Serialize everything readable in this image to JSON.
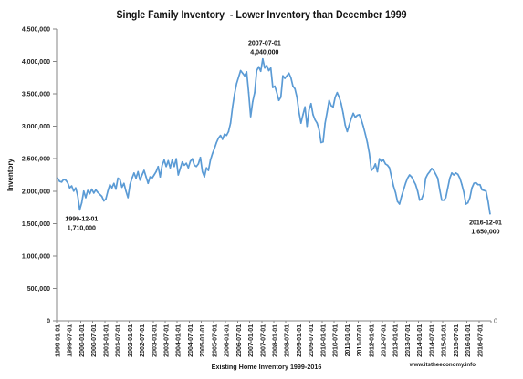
{
  "chart_data": {
    "type": "line",
    "title": "Single Family Inventory  - Lower Inventory than December 1999",
    "xlabel": "Existing Home Inventory 1999-2016",
    "ylabel": "Inventory",
    "ylim": [
      0,
      4500000
    ],
    "y_ticks": [
      0,
      500000,
      1000000,
      1500000,
      2000000,
      2500000,
      3000000,
      3500000,
      4000000,
      4500000
    ],
    "y_tick_labels": [
      "0",
      "500,000",
      "1,000,000",
      "1,500,000",
      "2,000,000",
      "2,500,000",
      "3,000,000",
      "3,500,000",
      "4,000,000",
      "4,500,000"
    ],
    "secondary_y_tick_labels": [
      "0"
    ],
    "grid": false,
    "line_color": "#5b9bd5",
    "x_tick_labels": [
      "1999-01-01",
      "1999-07-01",
      "2000-01-01",
      "2000-07-01",
      "2001-01-01",
      "2001-07-01",
      "2002-01-01",
      "2002-07-01",
      "2003-01-01",
      "2003-07-01",
      "2004-01-01",
      "2004-07-01",
      "2005-01-01",
      "2005-07-01",
      "2006-01-01",
      "2006-07-01",
      "2007-01-01",
      "2007-07-01",
      "2008-01-01",
      "2008-07-01",
      "2009-01-01",
      "2009-07-01",
      "2010-01-01",
      "2010-07-01",
      "2011-01-01",
      "2011-07-01",
      "2012-01-01",
      "2012-07-01",
      "2013-01-01",
      "2013-07-01",
      "2014-01-01",
      "2014-07-01",
      "2015-01-01",
      "2015-07-01",
      "2016-01-01",
      "2016-07-01"
    ],
    "x": [
      "1999-01-01",
      "1999-02-01",
      "1999-03-01",
      "1999-04-01",
      "1999-05-01",
      "1999-06-01",
      "1999-07-01",
      "1999-08-01",
      "1999-09-01",
      "1999-10-01",
      "1999-11-01",
      "1999-12-01",
      "2000-01-01",
      "2000-02-01",
      "2000-03-01",
      "2000-04-01",
      "2000-05-01",
      "2000-06-01",
      "2000-07-01",
      "2000-08-01",
      "2000-09-01",
      "2000-10-01",
      "2000-11-01",
      "2000-12-01",
      "2001-01-01",
      "2001-02-01",
      "2001-03-01",
      "2001-04-01",
      "2001-05-01",
      "2001-06-01",
      "2001-07-01",
      "2001-08-01",
      "2001-09-01",
      "2001-10-01",
      "2001-11-01",
      "2001-12-01",
      "2002-01-01",
      "2002-02-01",
      "2002-03-01",
      "2002-04-01",
      "2002-05-01",
      "2002-06-01",
      "2002-07-01",
      "2002-08-01",
      "2002-09-01",
      "2002-10-01",
      "2002-11-01",
      "2002-12-01",
      "2003-01-01",
      "2003-02-01",
      "2003-03-01",
      "2003-04-01",
      "2003-05-01",
      "2003-06-01",
      "2003-07-01",
      "2003-08-01",
      "2003-09-01",
      "2003-10-01",
      "2003-11-01",
      "2003-12-01",
      "2004-01-01",
      "2004-02-01",
      "2004-03-01",
      "2004-04-01",
      "2004-05-01",
      "2004-06-01",
      "2004-07-01",
      "2004-08-01",
      "2004-09-01",
      "2004-10-01",
      "2004-11-01",
      "2004-12-01",
      "2005-01-01",
      "2005-02-01",
      "2005-03-01",
      "2005-04-01",
      "2005-05-01",
      "2005-06-01",
      "2005-07-01",
      "2005-08-01",
      "2005-09-01",
      "2005-10-01",
      "2005-11-01",
      "2005-12-01",
      "2006-01-01",
      "2006-02-01",
      "2006-03-01",
      "2006-04-01",
      "2006-05-01",
      "2006-06-01",
      "2006-07-01",
      "2006-08-01",
      "2006-09-01",
      "2006-10-01",
      "2006-11-01",
      "2006-12-01",
      "2007-01-01",
      "2007-02-01",
      "2007-03-01",
      "2007-04-01",
      "2007-05-01",
      "2007-06-01",
      "2007-07-01",
      "2007-08-01",
      "2007-09-01",
      "2007-10-01",
      "2007-11-01",
      "2007-12-01",
      "2008-01-01",
      "2008-02-01",
      "2008-03-01",
      "2008-04-01",
      "2008-05-01",
      "2008-06-01",
      "2008-07-01",
      "2008-08-01",
      "2008-09-01",
      "2008-10-01",
      "2008-11-01",
      "2008-12-01",
      "2009-01-01",
      "2009-02-01",
      "2009-03-01",
      "2009-04-01",
      "2009-05-01",
      "2009-06-01",
      "2009-07-01",
      "2009-08-01",
      "2009-09-01",
      "2009-10-01",
      "2009-11-01",
      "2009-12-01",
      "2010-01-01",
      "2010-02-01",
      "2010-03-01",
      "2010-04-01",
      "2010-05-01",
      "2010-06-01",
      "2010-07-01",
      "2010-08-01",
      "2010-09-01",
      "2010-10-01",
      "2010-11-01",
      "2010-12-01",
      "2011-01-01",
      "2011-02-01",
      "2011-03-01",
      "2011-04-01",
      "2011-05-01",
      "2011-06-01",
      "2011-07-01",
      "2011-08-01",
      "2011-09-01",
      "2011-10-01",
      "2011-11-01",
      "2011-12-01",
      "2012-01-01",
      "2012-02-01",
      "2012-03-01",
      "2012-04-01",
      "2012-05-01",
      "2012-06-01",
      "2012-07-01",
      "2012-08-01",
      "2012-09-01",
      "2012-10-01",
      "2012-11-01",
      "2012-12-01",
      "2013-01-01",
      "2013-02-01",
      "2013-03-01",
      "2013-04-01",
      "2013-05-01",
      "2013-06-01",
      "2013-07-01",
      "2013-08-01",
      "2013-09-01",
      "2013-10-01",
      "2013-11-01",
      "2013-12-01",
      "2014-01-01",
      "2014-02-01",
      "2014-03-01",
      "2014-04-01",
      "2014-05-01",
      "2014-06-01",
      "2014-07-01",
      "2014-08-01",
      "2014-09-01",
      "2014-10-01",
      "2014-11-01",
      "2014-12-01",
      "2015-01-01",
      "2015-02-01",
      "2015-03-01",
      "2015-04-01",
      "2015-05-01",
      "2015-06-01",
      "2015-07-01",
      "2015-08-01",
      "2015-09-01",
      "2015-10-01",
      "2015-11-01",
      "2015-12-01",
      "2016-01-01",
      "2016-02-01",
      "2016-03-01",
      "2016-04-01",
      "2016-05-01",
      "2016-06-01",
      "2016-07-01",
      "2016-08-01",
      "2016-09-01",
      "2016-10-01",
      "2016-11-01",
      "2016-12-01"
    ],
    "series": [
      {
        "values": [
          2200000,
          2150000,
          2140000,
          2180000,
          2170000,
          2130000,
          2050000,
          2080000,
          2000000,
          2050000,
          1930000,
          1710000,
          1820000,
          2000000,
          1900000,
          2010000,
          1960000,
          2030000,
          1970000,
          2020000,
          1980000,
          1950000,
          1920000,
          1850000,
          1880000,
          2000000,
          2100000,
          2050000,
          2120000,
          2030000,
          2200000,
          2180000,
          2060000,
          2120000,
          2000000,
          1900000,
          2100000,
          2200000,
          2280000,
          2200000,
          2300000,
          2170000,
          2250000,
          2320000,
          2220000,
          2120000,
          2220000,
          2200000,
          2250000,
          2300000,
          2380000,
          2220000,
          2400000,
          2480000,
          2380000,
          2470000,
          2360000,
          2480000,
          2380000,
          2500000,
          2250000,
          2350000,
          2450000,
          2400000,
          2430000,
          2360000,
          2460000,
          2500000,
          2400000,
          2380000,
          2420000,
          2520000,
          2300000,
          2220000,
          2360000,
          2320000,
          2480000,
          2580000,
          2660000,
          2750000,
          2820000,
          2860000,
          2800000,
          2880000,
          2860000,
          2920000,
          3050000,
          3300000,
          3500000,
          3660000,
          3760000,
          3860000,
          3820000,
          3780000,
          3840000,
          3520000,
          3150000,
          3380000,
          3520000,
          3860000,
          3920000,
          3850000,
          4040000,
          3900000,
          3940000,
          3860000,
          3900000,
          3600000,
          3620000,
          3520000,
          3400000,
          3450000,
          3780000,
          3740000,
          3780000,
          3820000,
          3750000,
          3620000,
          3580000,
          3450000,
          3220000,
          3050000,
          3180000,
          3300000,
          3000000,
          3250000,
          3350000,
          3180000,
          3100000,
          3050000,
          2950000,
          2750000,
          2760000,
          3050000,
          3220000,
          3400000,
          3320000,
          3300000,
          3450000,
          3520000,
          3450000,
          3350000,
          3200000,
          3020000,
          2920000,
          3020000,
          3120000,
          3200000,
          3140000,
          3170000,
          3180000,
          3100000,
          3000000,
          2880000,
          2750000,
          2580000,
          2320000,
          2350000,
          2420000,
          2300000,
          2500000,
          2460000,
          2480000,
          2420000,
          2400000,
          2360000,
          2220000,
          2080000,
          1980000,
          1840000,
          1800000,
          1920000,
          2020000,
          2120000,
          2200000,
          2250000,
          2220000,
          2160000,
          2100000,
          2000000,
          1860000,
          1880000,
          1960000,
          2200000,
          2260000,
          2300000,
          2350000,
          2320000,
          2260000,
          2200000,
          2020000,
          1860000,
          1860000,
          1900000,
          2050000,
          2200000,
          2280000,
          2250000,
          2280000,
          2260000,
          2200000,
          2100000,
          1980000,
          1800000,
          1820000,
          1900000,
          2050000,
          2120000,
          2130000,
          2100000,
          2100000,
          2020000,
          2010000,
          2000000,
          1850000,
          1650000
        ]
      }
    ],
    "annotations": [
      {
        "date": "2007-07-01",
        "value": 4040000,
        "value_label": "4,040,000",
        "placement": "above"
      },
      {
        "date": "1999-12-01",
        "value": 1710000,
        "value_label": "1,710,000",
        "placement": "below"
      },
      {
        "date": "2016-12-01",
        "value": 1650000,
        "value_label": "1,650,000",
        "placement": "below"
      }
    ]
  },
  "watermark": "www.itstheeconomy.info"
}
